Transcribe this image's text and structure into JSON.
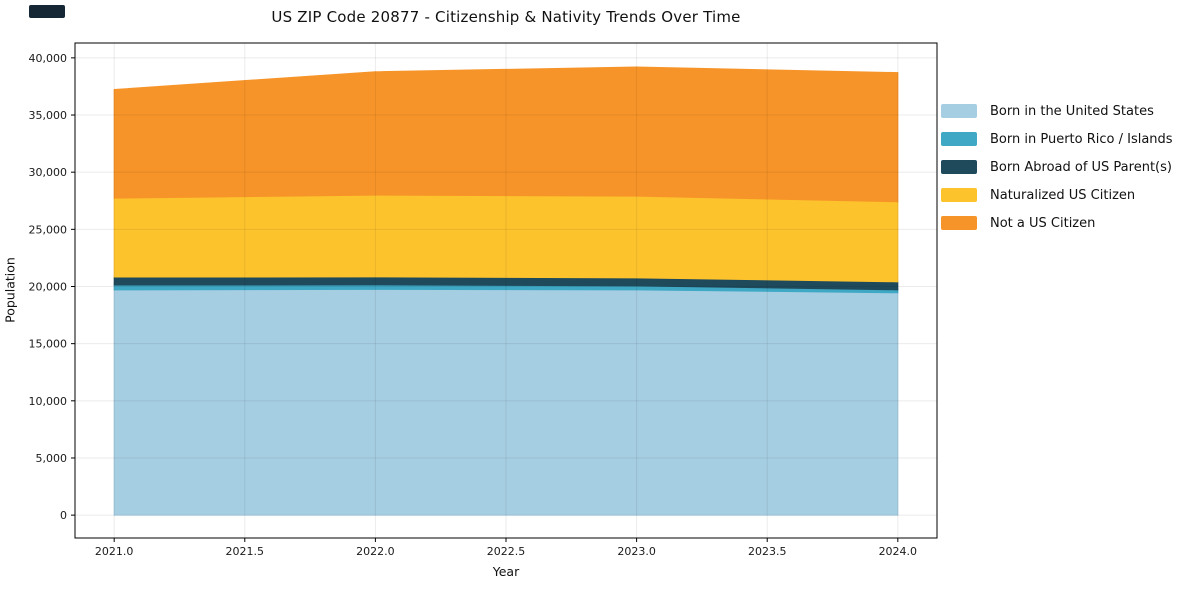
{
  "chart_data": {
    "type": "area",
    "stacked": true,
    "title": "US ZIP Code 20877 - Citizenship & Nativity Trends Over Time",
    "xlabel": "Year",
    "ylabel": "Population",
    "x": [
      2021,
      2022,
      2023,
      2024
    ],
    "series": [
      {
        "name": "Born in the United States",
        "color": "#A6CEE3",
        "values": [
          19700,
          19750,
          19700,
          19450
        ]
      },
      {
        "name": "Born in Puerto Rico / Islands",
        "color": "#3FA8C5",
        "values": [
          430,
          390,
          350,
          260
        ]
      },
      {
        "name": "Born Abroad of US Parent(s)",
        "color": "#1F4A5C",
        "values": [
          700,
          700,
          700,
          700
        ]
      },
      {
        "name": "Naturalized US Citizen",
        "color": "#FDC32D",
        "values": [
          6900,
          7150,
          7150,
          7000
        ]
      },
      {
        "name": "Not a US Citizen",
        "color": "#F79429",
        "values": [
          9500,
          10800,
          11300,
          11300
        ]
      }
    ],
    "totals": [
      37230,
      38790,
      39200,
      38710
    ],
    "xlim": [
      2020.85,
      2024.15
    ],
    "ylim": [
      -2000,
      41300
    ],
    "xticks": [
      2021.0,
      2021.5,
      2022.0,
      2022.5,
      2023.0,
      2023.5,
      2024.0
    ],
    "yticks": [
      0,
      5000,
      10000,
      15000,
      20000,
      25000,
      30000,
      35000,
      40000
    ],
    "grid": true,
    "legend_position": "right-outside",
    "frame_color": "#000000",
    "text_color": "#111111",
    "gridline_color": "rgba(0,0,0,0.08)"
  }
}
